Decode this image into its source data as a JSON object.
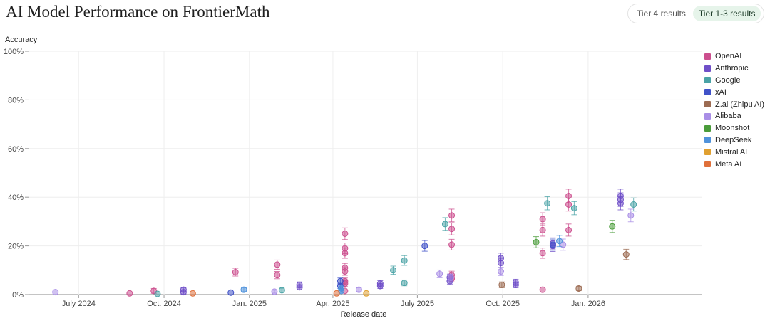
{
  "header": {
    "title": "AI Model Performance on FrontierMath",
    "tabs": [
      {
        "label": "Tier 4 results",
        "active": false
      },
      {
        "label": "Tier 1-3 results",
        "active": true
      }
    ]
  },
  "chart_data": {
    "type": "scatter",
    "ylabel": "Accuracy",
    "xlabel": "Release date",
    "ylim": [
      0,
      100
    ],
    "xlim": [
      "2024-05-08",
      "2026-05-04"
    ],
    "y_ticks": [
      {
        "value": 0,
        "label": "0%"
      },
      {
        "value": 20,
        "label": "20%"
      },
      {
        "value": 40,
        "label": "40%"
      },
      {
        "value": 60,
        "label": "60%"
      },
      {
        "value": 80,
        "label": "80%"
      },
      {
        "value": 100,
        "label": "100%"
      }
    ],
    "x_ticks": [
      {
        "date": "2024-07-01",
        "label": "July 2024"
      },
      {
        "date": "2024-10-01",
        "label": "Oct. 2024"
      },
      {
        "date": "2025-01-01",
        "label": "Jan. 2025"
      },
      {
        "date": "2025-04-01",
        "label": "Apr. 2025"
      },
      {
        "date": "2025-07-01",
        "label": "July 2025"
      },
      {
        "date": "2025-10-01",
        "label": "Oct. 2025"
      },
      {
        "date": "2026-01-01",
        "label": "Jan. 2026"
      }
    ],
    "grid": true,
    "legend_position": "right",
    "series": [
      {
        "name": "OpenAI",
        "color": "#cc4f8e",
        "points": [
          {
            "x": "2024-08-25",
            "y": 0.5,
            "err": 0
          },
          {
            "x": "2024-09-20",
            "y": 1.5,
            "err": 1
          },
          {
            "x": "2024-12-17",
            "y": 9.2,
            "err": 1.6
          },
          {
            "x": "2025-01-31",
            "y": 12.3,
            "err": 1.9
          },
          {
            "x": "2025-01-31",
            "y": 8.0,
            "err": 1.5
          },
          {
            "x": "2025-04-14",
            "y": 25.0,
            "err": 2.4
          },
          {
            "x": "2025-04-14",
            "y": 19.0,
            "err": 2.2
          },
          {
            "x": "2025-04-14",
            "y": 17.0,
            "err": 2.1
          },
          {
            "x": "2025-04-14",
            "y": 11.0,
            "err": 1.8
          },
          {
            "x": "2025-04-14",
            "y": 9.5,
            "err": 1.6
          },
          {
            "x": "2025-04-14",
            "y": 5.5,
            "err": 1.3
          },
          {
            "x": "2025-04-14",
            "y": 4.5,
            "err": 1.2
          },
          {
            "x": "2025-04-14",
            "y": 1.5,
            "err": 0
          },
          {
            "x": "2025-08-07",
            "y": 32.5,
            "err": 2.6
          },
          {
            "x": "2025-08-07",
            "y": 27.0,
            "err": 2.5
          },
          {
            "x": "2025-08-07",
            "y": 20.5,
            "err": 2.2
          },
          {
            "x": "2025-08-07",
            "y": 8.0,
            "err": 1.6
          },
          {
            "x": "2025-08-07",
            "y": 6.5,
            "err": 1.3
          },
          {
            "x": "2025-11-13",
            "y": 31.0,
            "err": 2.6
          },
          {
            "x": "2025-11-13",
            "y": 26.5,
            "err": 2.5
          },
          {
            "x": "2025-11-13",
            "y": 17.0,
            "err": 2.1
          },
          {
            "x": "2025-11-13",
            "y": 2.0,
            "err": 0
          },
          {
            "x": "2025-12-11",
            "y": 40.5,
            "err": 2.8
          },
          {
            "x": "2025-12-11",
            "y": 37.0,
            "err": 2.7
          },
          {
            "x": "2025-12-11",
            "y": 26.5,
            "err": 2.5
          }
        ]
      },
      {
        "name": "Anthropic",
        "color": "#6f4fc8",
        "points": [
          {
            "x": "2024-10-22",
            "y": 2.0,
            "err": 0.8
          },
          {
            "x": "2024-10-22",
            "y": 1.0,
            "err": 0.8
          },
          {
            "x": "2025-02-24",
            "y": 4.0,
            "err": 1.2
          },
          {
            "x": "2025-02-24",
            "y": 3.0,
            "err": 1.0
          },
          {
            "x": "2025-05-22",
            "y": 4.5,
            "err": 1.2
          },
          {
            "x": "2025-05-22",
            "y": 3.5,
            "err": 1.0
          },
          {
            "x": "2025-08-05",
            "y": 7.0,
            "err": 1.4
          },
          {
            "x": "2025-08-05",
            "y": 5.5,
            "err": 1.2
          },
          {
            "x": "2025-09-29",
            "y": 15.0,
            "err": 2.0
          },
          {
            "x": "2025-09-29",
            "y": 13.0,
            "err": 1.9
          },
          {
            "x": "2025-10-15",
            "y": 5.0,
            "err": 1.3
          },
          {
            "x": "2025-10-15",
            "y": 4.0,
            "err": 1.2
          },
          {
            "x": "2025-11-24",
            "y": 21.0,
            "err": 2.3
          },
          {
            "x": "2025-11-24",
            "y": 20.0,
            "err": 2.3
          },
          {
            "x": "2026-02-05",
            "y": 40.5,
            "err": 2.8
          },
          {
            "x": "2026-02-05",
            "y": 39.0,
            "err": 2.8
          },
          {
            "x": "2026-02-05",
            "y": 37.5,
            "err": 2.7
          }
        ]
      },
      {
        "name": "Google",
        "color": "#4aa3a6",
        "points": [
          {
            "x": "2024-09-24",
            "y": 0.3,
            "err": 0
          },
          {
            "x": "2025-02-05",
            "y": 1.8,
            "err": 0.8
          },
          {
            "x": "2025-06-05",
            "y": 10.0,
            "err": 1.7
          },
          {
            "x": "2025-06-17",
            "y": 14.0,
            "err": 2.0
          },
          {
            "x": "2025-06-17",
            "y": 4.8,
            "err": 1.2
          },
          {
            "x": "2025-07-31",
            "y": 29.0,
            "err": 2.6
          },
          {
            "x": "2025-11-18",
            "y": 37.5,
            "err": 2.7
          },
          {
            "x": "2025-12-17",
            "y": 35.5,
            "err": 2.7
          },
          {
            "x": "2026-02-19",
            "y": 37.0,
            "err": 2.7
          }
        ]
      },
      {
        "name": "xAI",
        "color": "#4052c8",
        "points": [
          {
            "x": "2024-12-12",
            "y": 0.8,
            "err": 0
          },
          {
            "x": "2025-04-09",
            "y": 5.5,
            "err": 1.3
          },
          {
            "x": "2025-04-09",
            "y": 3.5,
            "err": 1.0
          },
          {
            "x": "2025-07-09",
            "y": 20.0,
            "err": 2.2
          },
          {
            "x": "2025-11-24",
            "y": 20.5,
            "err": 2.3
          }
        ]
      },
      {
        "name": "Z.ai (Zhipu AI)",
        "color": "#9c6b52",
        "points": [
          {
            "x": "2025-09-30",
            "y": 4.0,
            "err": 1.2
          },
          {
            "x": "2025-12-22",
            "y": 2.5,
            "err": 0.9
          },
          {
            "x": "2026-02-11",
            "y": 16.5,
            "err": 2.1
          }
        ]
      },
      {
        "name": "Alibaba",
        "color": "#a98ee6",
        "points": [
          {
            "x": "2024-06-06",
            "y": 1.0,
            "err": 0
          },
          {
            "x": "2025-01-28",
            "y": 1.2,
            "err": 0.6
          },
          {
            "x": "2025-04-29",
            "y": 2.0,
            "err": 0.8
          },
          {
            "x": "2025-07-25",
            "y": 8.5,
            "err": 1.6
          },
          {
            "x": "2025-08-06",
            "y": 7.0,
            "err": 1.4
          },
          {
            "x": "2025-09-29",
            "y": 9.5,
            "err": 1.7
          },
          {
            "x": "2025-12-05",
            "y": 20.5,
            "err": 2.3
          },
          {
            "x": "2026-02-16",
            "y": 32.5,
            "err": 2.6
          }
        ]
      },
      {
        "name": "Moonshot",
        "color": "#4a9c3a",
        "points": [
          {
            "x": "2025-11-06",
            "y": 21.5,
            "err": 2.3
          },
          {
            "x": "2026-01-27",
            "y": 28.0,
            "err": 2.5
          }
        ]
      },
      {
        "name": "DeepSeek",
        "color": "#4f92db",
        "points": [
          {
            "x": "2024-12-26",
            "y": 2.0,
            "err": 0.8
          },
          {
            "x": "2025-04-10",
            "y": 2.5,
            "err": 0.9
          },
          {
            "x": "2025-04-10",
            "y": 1.5,
            "err": 0.7
          },
          {
            "x": "2025-12-01",
            "y": 22.0,
            "err": 2.3
          }
        ]
      },
      {
        "name": "Mistral AI",
        "color": "#e0a030",
        "points": [
          {
            "x": "2025-05-07",
            "y": 0.5,
            "err": 0
          }
        ]
      },
      {
        "name": "Meta AI",
        "color": "#e0703a",
        "points": [
          {
            "x": "2024-11-01",
            "y": 0.5,
            "err": 0
          },
          {
            "x": "2025-04-05",
            "y": 0.5,
            "err": 0
          }
        ]
      }
    ]
  }
}
